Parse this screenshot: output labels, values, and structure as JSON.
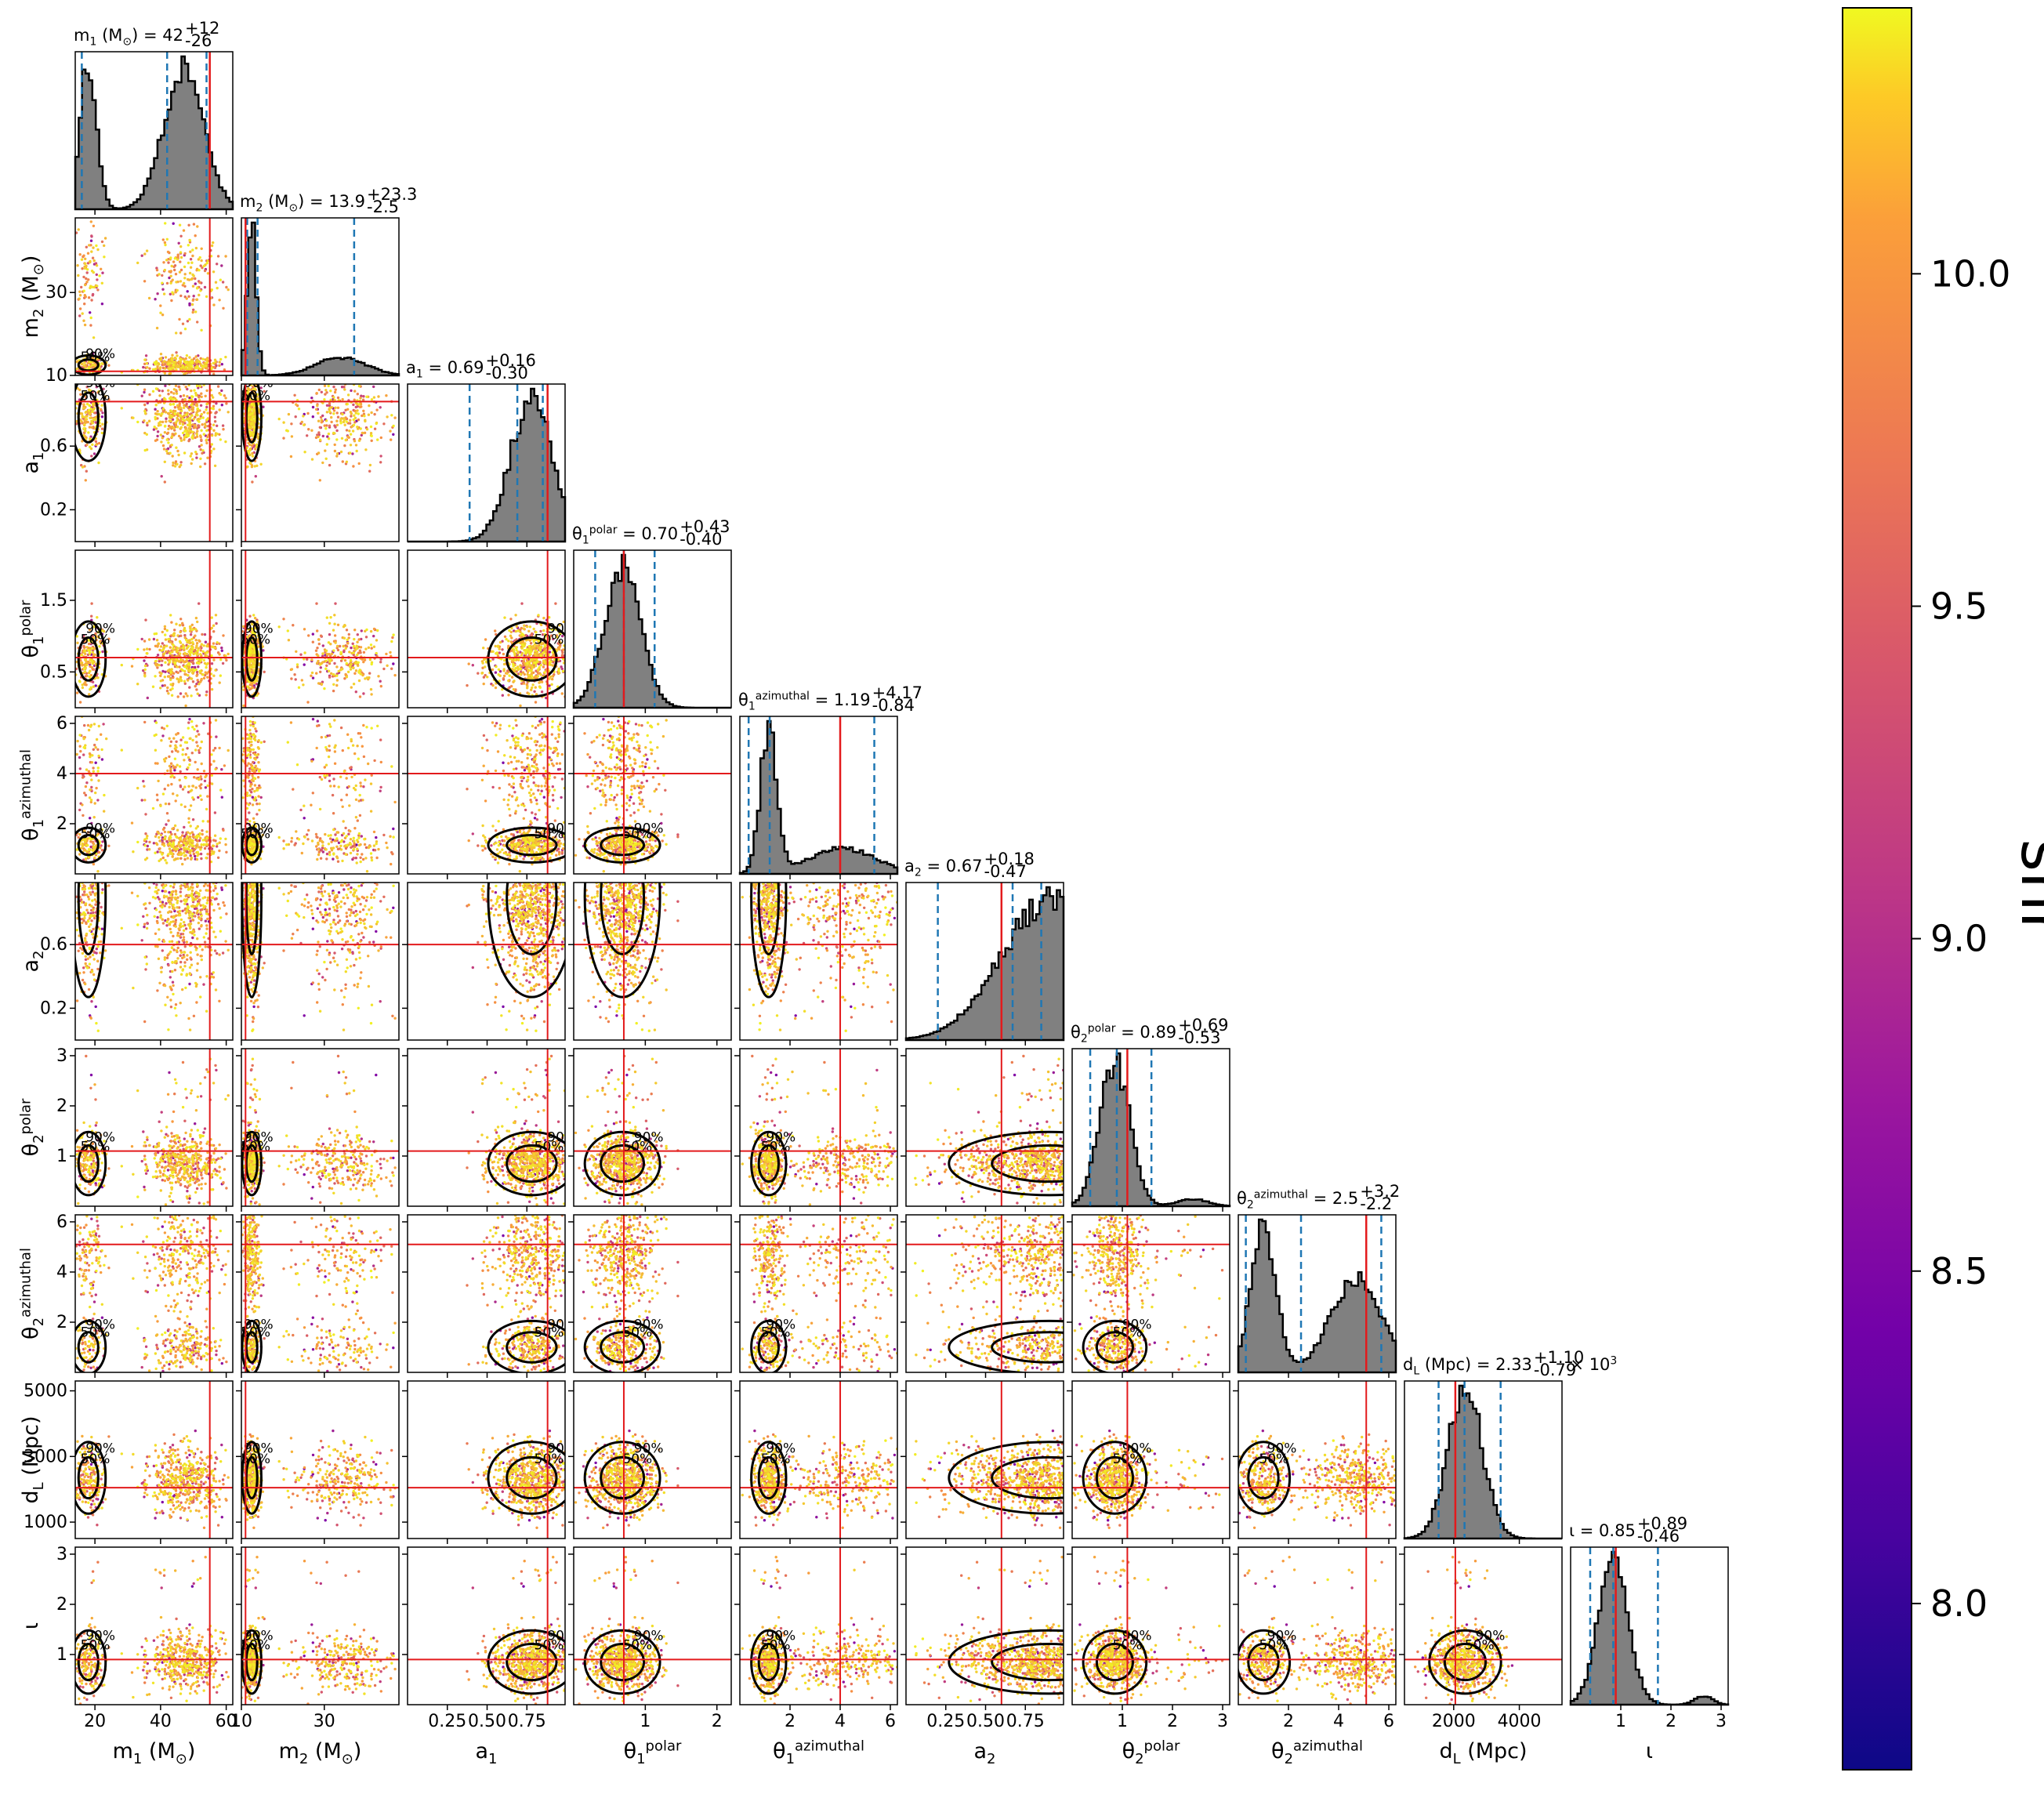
{
  "chart_data": {
    "type": "corner",
    "parameters": [
      {
        "key": "m1",
        "label": "m_1 (M_⊙)",
        "title": "m_1 (M_⊙) = 42^{+12}_{-26}",
        "range": [
          14,
          62
        ],
        "ticks": [
          20,
          40,
          60
        ],
        "truth": 55,
        "median": 42,
        "lo": 16,
        "hi": 54,
        "peaks": [
          [
            18,
            0.92,
            2.5
          ],
          [
            47,
            0.88,
            6
          ]
        ],
        "mode": "normal"
      },
      {
        "key": "m2",
        "label": "m_2 (M_⊙)",
        "title": "m_2 (M_⊙) = 13.9^{+23.3}_{-2.5}",
        "range": [
          10,
          48
        ],
        "ticks": [
          10,
          30
        ],
        "truth": 11,
        "median": 13.9,
        "lo": 11.4,
        "hi": 37.2,
        "peaks": [
          [
            12.5,
            1.0,
            1.1
          ],
          [
            34,
            0.12,
            6
          ]
        ],
        "mode": "normal"
      },
      {
        "key": "a1",
        "label": "a_1",
        "title": "a_1 = 0.69^{+0.16}_{-0.30}",
        "range": [
          0.0,
          0.99
        ],
        "ticks": [
          0.25,
          0.5,
          0.75
        ],
        "ticklabels": [
          "0.25",
          "0.50",
          "0.75"
        ],
        "ticksY": [
          0.2,
          0.6
        ],
        "truth": 0.88,
        "median": 0.69,
        "lo": 0.39,
        "hi": 0.85,
        "peaks": [
          [
            0.78,
            1.0,
            0.13
          ]
        ],
        "mode": "normal"
      },
      {
        "key": "t1p",
        "label": "θ_1^{polar}",
        "title": "θ_1^{polar} = 0.70^{+0.43}_{-0.40}",
        "range": [
          0.0,
          2.2
        ],
        "ticks": [
          1,
          2
        ],
        "ticksY": [
          0.5,
          1.5
        ],
        "truth": 0.7,
        "median": 0.7,
        "lo": 0.3,
        "hi": 1.13,
        "peaks": [
          [
            0.68,
            1.0,
            0.25
          ]
        ],
        "mode": "normal"
      },
      {
        "key": "t1a",
        "label": "θ_1^{azimuthal}",
        "title": "θ_1^{azimuthal} = 1.19^{+4.17}_{-0.84}",
        "range": [
          0.0,
          6.28
        ],
        "ticks": [
          2,
          4,
          6
        ],
        "ticksY": [
          2,
          4,
          6
        ],
        "truth": 4.0,
        "median": 1.19,
        "lo": 0.35,
        "hi": 5.36,
        "peaks": [
          [
            1.15,
            1.0,
            0.33
          ],
          [
            4.1,
            0.18,
            1.3
          ]
        ],
        "mode": "normal"
      },
      {
        "key": "a2",
        "label": "a_2",
        "title": "a_2 = 0.67^{+0.18}_{-0.47}",
        "range": [
          0.0,
          0.99
        ],
        "ticks": [
          0.25,
          0.5,
          0.75
        ],
        "ticklabels": [
          "0.25",
          "0.50",
          "0.75"
        ],
        "ticksY": [
          0.2,
          0.6
        ],
        "truth": 0.6,
        "median": 0.67,
        "lo": 0.2,
        "hi": 0.85,
        "peaks": [
          [
            0.9,
            1.0,
            0.3
          ]
        ],
        "mode": "normal"
      },
      {
        "key": "t2p",
        "label": "θ_2^{polar}",
        "title": "θ_2^{polar} = 0.89^{+0.69}_{-0.53}",
        "range": [
          0.0,
          3.14
        ],
        "ticks": [
          1,
          2,
          3
        ],
        "ticksY": [
          1,
          2,
          3
        ],
        "truth": 1.1,
        "median": 0.89,
        "lo": 0.36,
        "hi": 1.58,
        "peaks": [
          [
            0.85,
            1.0,
            0.3
          ],
          [
            2.4,
            0.05,
            0.3
          ]
        ],
        "mode": "normal"
      },
      {
        "key": "t2a",
        "label": "θ_2^{azimuthal}",
        "title": "θ_2^{azimuthal} = 2.5^{+3.2}_{-2.2}",
        "range": [
          0.0,
          6.28
        ],
        "ticks": [
          2,
          4,
          6
        ],
        "ticksY": [
          2,
          4,
          6
        ],
        "truth": 5.1,
        "median": 2.5,
        "lo": 0.3,
        "hi": 5.7,
        "peaks": [
          [
            1.0,
            1.0,
            0.5
          ],
          [
            4.7,
            0.65,
            1.0
          ]
        ],
        "mode": "normal"
      },
      {
        "key": "dL",
        "label": "d_L (Mpc)",
        "title": "d_L (Mpc) = 2.33^{+1.10}_{-0.79} × 10^3",
        "range": [
          500,
          5300
        ],
        "ticks": [
          2000,
          4000
        ],
        "ticksY": [
          1000,
          3000,
          5000
        ],
        "truth": 2050,
        "median": 2330,
        "lo": 1540,
        "hi": 3430,
        "peaks": [
          [
            2350,
            1.0,
            520
          ]
        ],
        "mode": "lognormal"
      },
      {
        "key": "iota",
        "label": "ι",
        "title": "ι = 0.85^{+0.89}_{-0.46}",
        "range": [
          0.0,
          3.14
        ],
        "ticks": [
          1,
          2,
          3
        ],
        "ticksY": [
          1,
          2,
          3
        ],
        "truth": 0.9,
        "median": 0.85,
        "lo": 0.39,
        "hi": 1.74,
        "peaks": [
          [
            0.85,
            1.0,
            0.3
          ],
          [
            2.65,
            0.06,
            0.18
          ]
        ],
        "mode": "normal"
      }
    ],
    "contour_levels": [
      "50%",
      "90%"
    ],
    "colorbar": {
      "label": "snr",
      "min": 7.75,
      "max": 10.4,
      "ticks": [
        8.0,
        8.5,
        9.0,
        9.5,
        10.0
      ],
      "ticklabels": [
        "8.0",
        "8.5",
        "9.0",
        "9.5",
        "10.0"
      ],
      "cmap": "plasma"
    },
    "colors": {
      "median_line": "#1f77b4",
      "truth_line": "#e31a1c",
      "histogram_fill": "#808080",
      "contour": "#000000"
    }
  }
}
